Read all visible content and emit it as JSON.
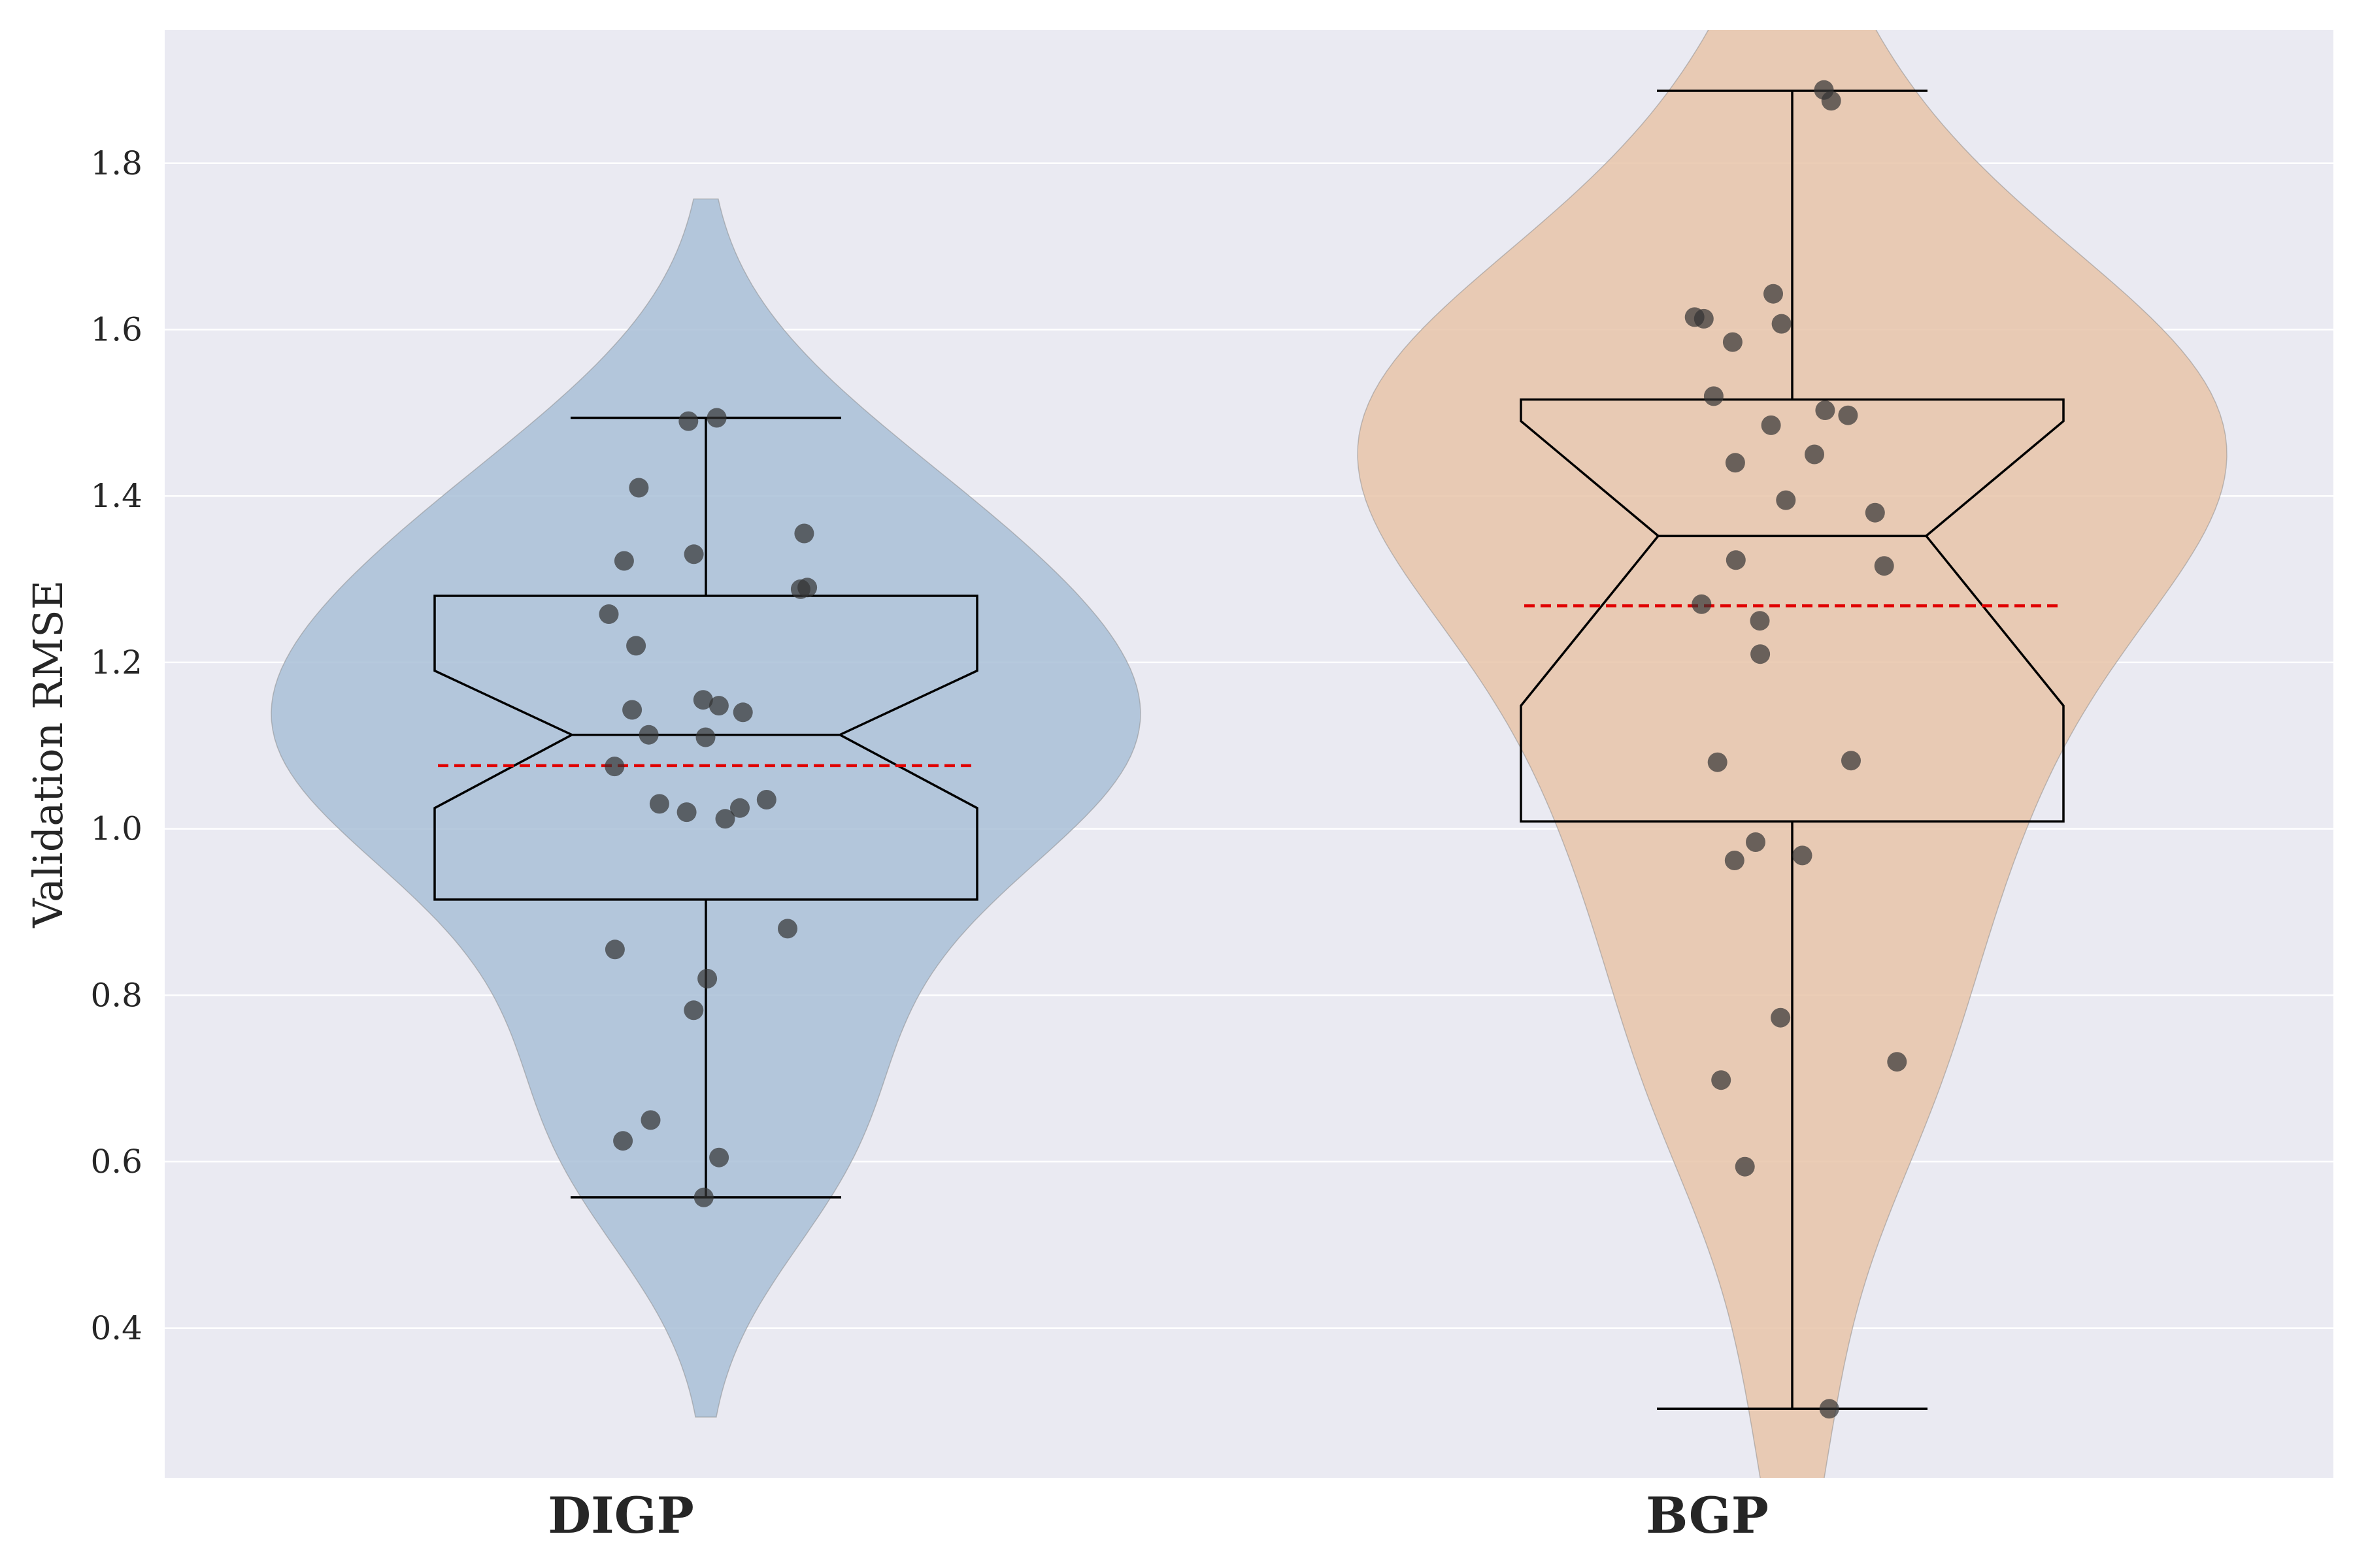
{
  "chart_data": {
    "type": "violin",
    "ylabel": "Validation RMSE",
    "ylim": [
      0.22,
      1.96
    ],
    "yticks": [
      0.4,
      0.6,
      0.8,
      1.0,
      1.2,
      1.4,
      1.6,
      1.8
    ],
    "ytick_labels": [
      "0.4",
      "0.6",
      "0.8",
      "1.0",
      "1.2",
      "1.4",
      "1.6",
      "1.8"
    ],
    "grid": true,
    "categories": [
      "DIGP",
      "BGP"
    ],
    "colors": {
      "background": "#EAEAF2",
      "grid": "#FFFFFF",
      "mean_line": "#E00000",
      "points": "#333333"
    },
    "series": [
      {
        "category": "DIGP",
        "violin_color": "#A9C0D7",
        "violin_range": [
          0.293,
          1.757
        ],
        "box": {
          "whisker_low": 0.557,
          "q1": 0.915,
          "median": 1.113,
          "q3": 1.28,
          "whisker_high": 1.494,
          "notch_low": 1.025,
          "notch_high": 1.19
        },
        "mean": 1.076,
        "points": [
          0.557,
          0.605,
          0.625,
          0.65,
          0.782,
          0.82,
          0.855,
          0.88,
          1.012,
          1.02,
          1.03,
          1.035,
          1.025,
          1.075,
          1.11,
          1.113,
          1.14,
          1.143,
          1.148,
          1.155,
          1.22,
          1.258,
          1.288,
          1.29,
          1.322,
          1.33,
          1.355,
          1.41,
          1.49,
          1.494
        ]
      },
      {
        "category": "BGP",
        "violin_color": "#E8C4A9",
        "violin_range": [
          0.2,
          2.0
        ],
        "box": {
          "whisker_low": 0.303,
          "q1": 1.009,
          "median": 1.352,
          "q3": 1.516,
          "whisker_high": 1.887,
          "notch_low": 1.148,
          "notch_high": 1.49
        },
        "mean": 1.268,
        "points": [
          0.303,
          0.594,
          0.698,
          0.72,
          0.773,
          0.962,
          0.968,
          0.984,
          1.08,
          1.082,
          1.21,
          1.25,
          1.27,
          1.316,
          1.323,
          1.38,
          1.395,
          1.44,
          1.45,
          1.485,
          1.497,
          1.503,
          1.52,
          1.585,
          1.607,
          1.613,
          1.615,
          1.643,
          1.875,
          1.888
        ]
      }
    ]
  }
}
